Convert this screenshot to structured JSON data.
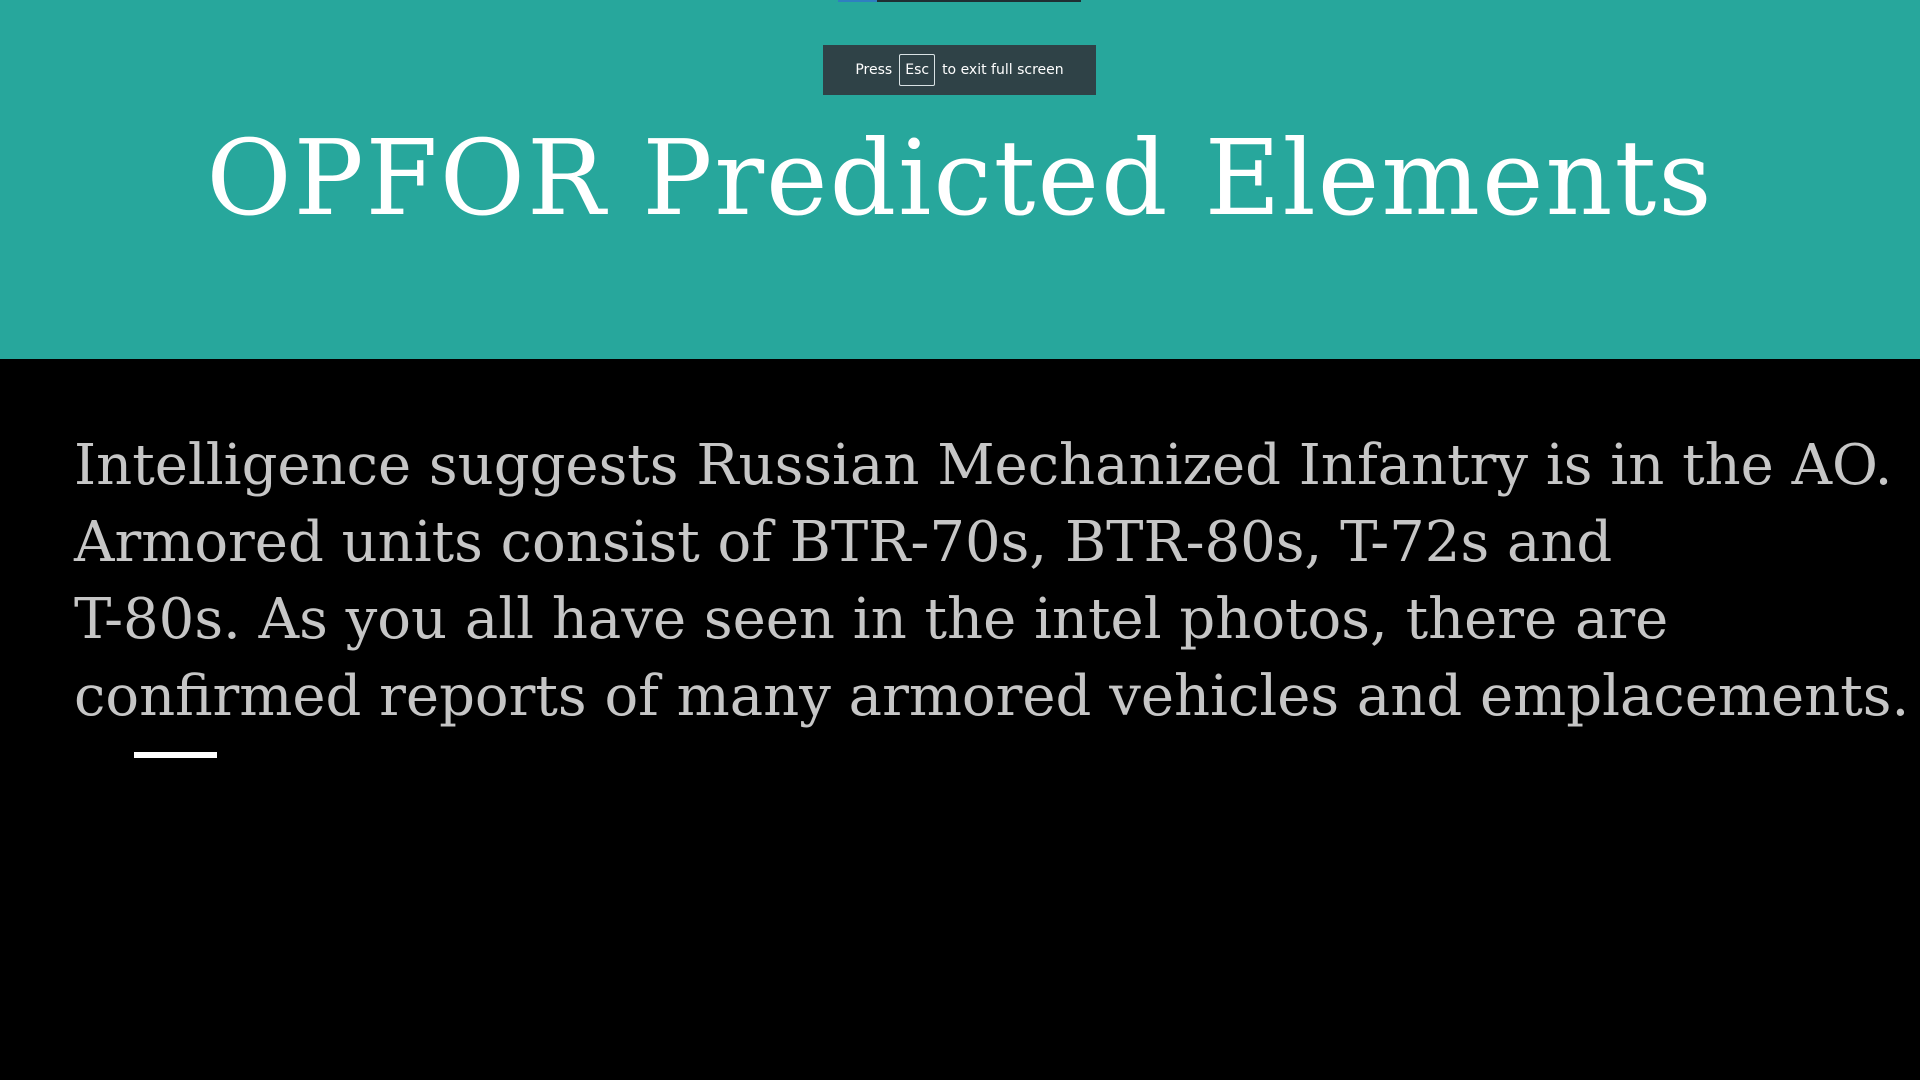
{
  "fullscreen_notice": {
    "press_label": "Press",
    "key_label": "Esc",
    "suffix_label": "to exit full screen"
  },
  "progress": {
    "fraction": 0.16
  },
  "slide": {
    "title": "OPFOR Predicted Elements",
    "body_lines": [
      "Intelligence suggests Russian Mechanized Infantry is in the AO.",
      "Armored units consist of BTR-70s, BTR-80s, T-72s and",
      "T-80s. As you all have seen in the intel photos, there are",
      "confirmed reports of many armored vehicles and emplacements."
    ]
  },
  "colors": {
    "header_band": "#27A79C",
    "background": "#000000",
    "title_text": "#FFFFFF",
    "body_text": "#C6C6C6",
    "toast_background": "#2F4247",
    "accent_bar": "#FFFFFF"
  }
}
